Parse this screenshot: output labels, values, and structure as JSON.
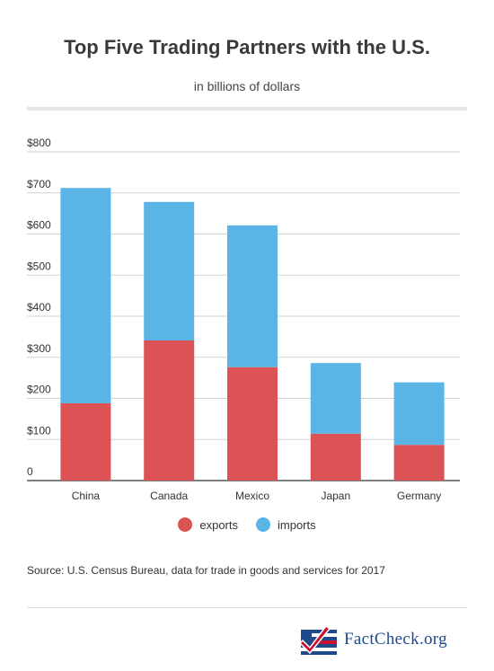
{
  "header": {
    "title": "Top Five Trading Partners with the U.S.",
    "subtitle": "in billions of dollars"
  },
  "chart_data": {
    "type": "bar",
    "stacked": true,
    "categories": [
      "China",
      "Canada",
      "Mexico",
      "Japan",
      "Germany"
    ],
    "series": [
      {
        "name": "exports",
        "values": [
          188,
          341,
          276,
          114,
          87
        ],
        "color": "#dc5356"
      },
      {
        "name": "imports",
        "values": [
          524,
          337,
          345,
          172,
          152
        ],
        "color": "#5ab4e5"
      }
    ],
    "ylim": [
      0,
      800
    ],
    "yticks": [
      0,
      100,
      200,
      300,
      400,
      500,
      600,
      700,
      800
    ],
    "ytick_labels": [
      "0",
      "$100",
      "$200",
      "$300",
      "$400",
      "$500",
      "$600",
      "$700",
      "$800"
    ],
    "grid": true,
    "legend": "bottom-center"
  },
  "legend": {
    "exports_label": "exports",
    "imports_label": "imports",
    "exports_color": "#dc5356",
    "imports_color": "#5ab4e5"
  },
  "footer": {
    "source": "Source: U.S. Census Bureau, data for trade in goods and services for 2017",
    "logo_text": "FactCheck.org"
  }
}
